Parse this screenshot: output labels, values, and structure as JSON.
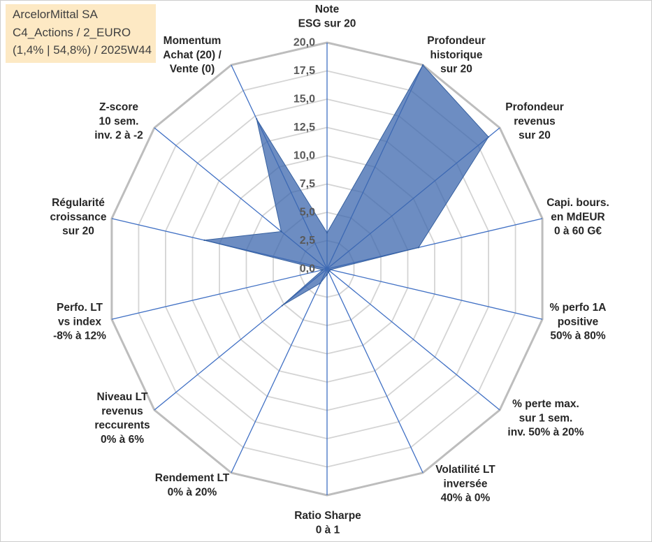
{
  "chart_data": {
    "type": "radar",
    "title": "ArcelorMittal SA",
    "subtitle": [
      "C4_Actions / 2_EURO",
      "(1,4% | 54,8%) / 2025W44"
    ],
    "categories": [
      [
        "Note",
        "ESG sur 20"
      ],
      [
        "Profondeur",
        "historique",
        "sur 20"
      ],
      [
        "Profondeur",
        "revenus",
        "sur 20"
      ],
      [
        "Capi. bours.",
        "en MdEUR",
        "0 à 60 G€"
      ],
      [
        "% perfo 1A",
        "positive",
        "50% à 80%"
      ],
      [
        "% perte max.",
        "sur 1 sem.",
        "inv. 50% à 20%"
      ],
      [
        "Volatilité LT",
        "inversée",
        "40% à 0%"
      ],
      [
        "Ratio Sharpe",
        "0 à 1"
      ],
      [
        "Rendement LT",
        "0% à 20%"
      ],
      [
        "Niveau LT",
        "revenus",
        "reccurents",
        "0% à 6%"
      ],
      [
        "Perfo. LT",
        "vs index",
        "-8% à 12%"
      ],
      [
        "Régularité",
        "croissance",
        "sur 20"
      ],
      [
        "Z-score",
        "10 sem.",
        "inv. 2 à -2"
      ],
      [
        "Momentum",
        "Achat (20) /",
        "Vente (0)"
      ]
    ],
    "series": [
      {
        "values": [
          3.2,
          20,
          18.7,
          8.5,
          0.3,
          0.3,
          0.3,
          0.5,
          1.4,
          5.2,
          0.4,
          11.4,
          5.3,
          14.7
        ]
      }
    ],
    "rlim": [
      0,
      20
    ],
    "r_ticks": [
      0,
      2.5,
      5,
      7.5,
      10,
      12.5,
      15,
      17.5,
      20
    ],
    "r_tick_labels": [
      "0,0",
      "2,5",
      "5,0",
      "7,5",
      "10,0",
      "12,5",
      "15,0",
      "17,5",
      "20,0"
    ],
    "grid": true
  },
  "colors": {
    "series_fill": "#3c67ad",
    "series_line": "#36609f",
    "spoke": "#4070c4",
    "grid": "#d4d4d4",
    "outer_ring": "#bdbdbd",
    "title_box_bg": "#fde9c4"
  }
}
